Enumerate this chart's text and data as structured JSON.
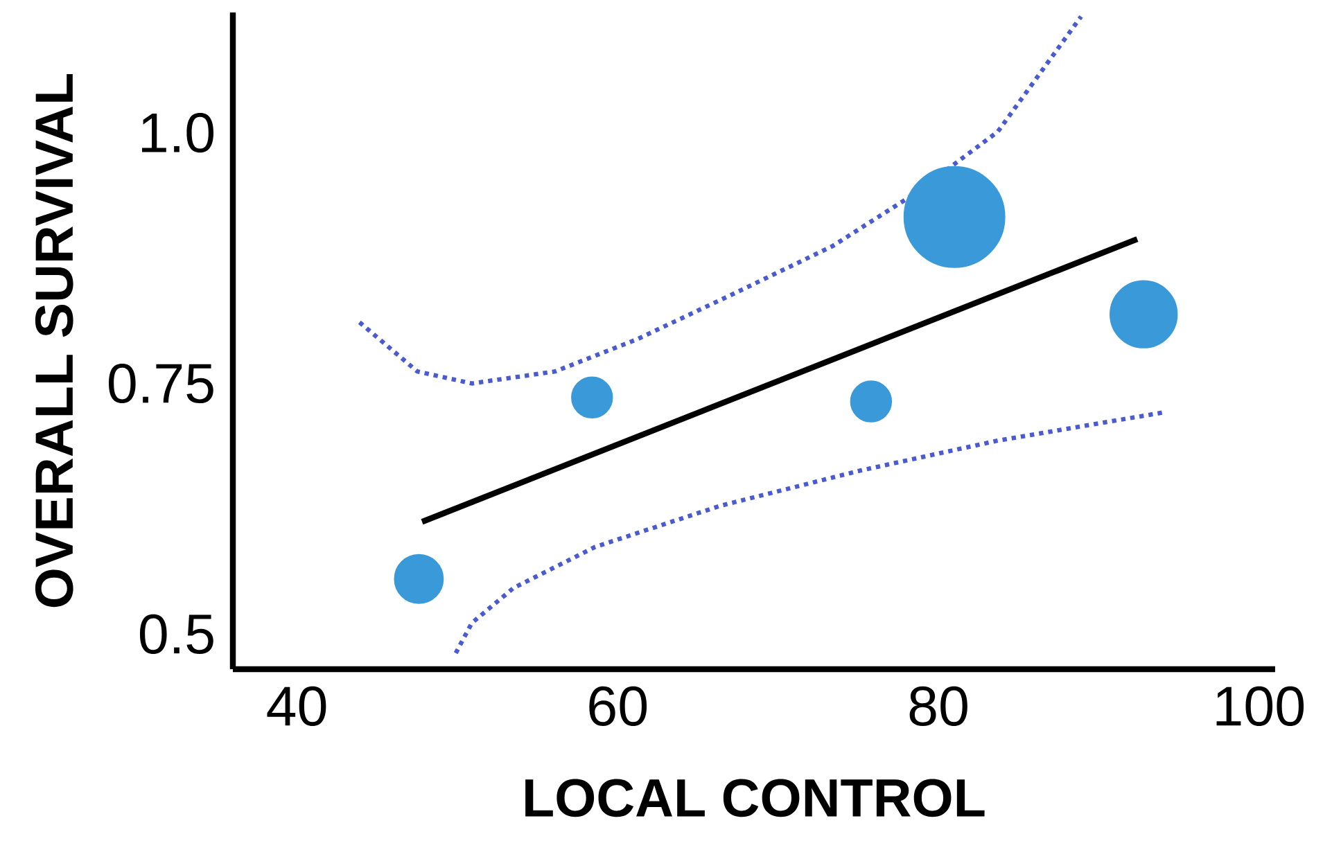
{
  "chart_data": {
    "type": "bubble",
    "xlabel": "LOCAL CONTROL",
    "ylabel": "OVERALL SURVIVAL",
    "xlim": [
      36,
      101
    ],
    "ylim": [
      0.465,
      1.12
    ],
    "xticks": [
      40,
      60,
      80,
      100
    ],
    "yticks": [
      {
        "value": 0.5,
        "label": "0.5"
      },
      {
        "value": 0.75,
        "label": "0.75"
      },
      {
        "value": 1,
        "label": "1.0"
      }
    ],
    "grid": false,
    "series": [
      {
        "color": "#3a9ad9",
        "x": [
          47.6,
          58.4,
          75.8,
          81.0,
          92.8
        ],
        "values": [
          0.555,
          0.736,
          0.732,
          0.916,
          0.819
        ],
        "sizes": [
          0.23,
          0.16,
          0.16,
          1,
          0.44
        ]
      },
      {
        "type": "line",
        "color": "#000000",
        "line_style": "solid",
        "x": [
          47.8,
          92.4
        ],
        "values": [
          0.612,
          0.894
        ]
      },
      {
        "type": "line",
        "color": "#4a5ad0",
        "line_style": "dotted",
        "x": [
          43.9,
          47.5,
          50.9,
          56.1,
          61.2,
          67.3,
          73.4,
          78.5,
          83.7,
          88.9
        ],
        "values": [
          0.811,
          0.762,
          0.75,
          0.762,
          0.794,
          0.84,
          0.887,
          0.939,
          1.001,
          1.116
        ]
      },
      {
        "type": "line",
        "color": "#4a5ad0",
        "line_style": "dotted",
        "x": [
          49.9,
          50.9,
          53.5,
          58.6,
          66.4,
          75.1,
          83.7,
          94.0
        ],
        "values": [
          0.481,
          0.511,
          0.546,
          0.587,
          0.628,
          0.663,
          0.693,
          0.721
        ]
      }
    ]
  }
}
